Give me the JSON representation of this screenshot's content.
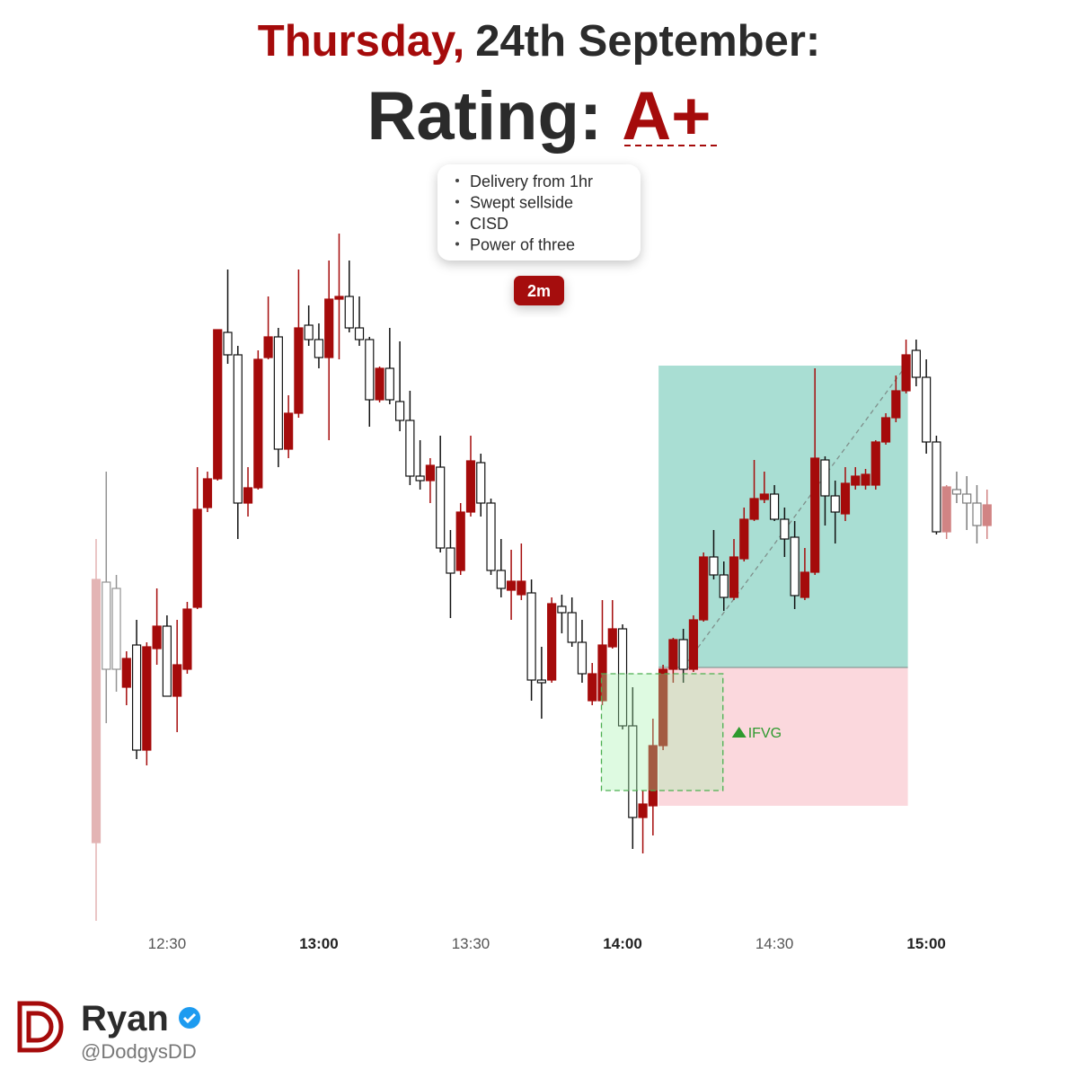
{
  "header": {
    "day": "Thursday,",
    "date": "24th September:",
    "rating_label": "Rating:",
    "rating": "A+"
  },
  "notes": {
    "bullets": [
      "Delivery from 1hr",
      "Swept sellside",
      "CISD",
      "Power of three"
    ],
    "timeframe": "2m"
  },
  "footer": {
    "name": "Ryan",
    "handle": "@DodgysDD"
  },
  "chart_data": {
    "type": "candlestick",
    "categories": [
      null,
      null,
      null,
      null,
      null,
      null,
      null,
      "12:30",
      null,
      null,
      null,
      null,
      null,
      null,
      null,
      null,
      null,
      null,
      null,
      null,
      null,
      null,
      "13:00",
      null,
      null,
      null,
      null,
      null,
      null,
      null,
      null,
      null,
      null,
      null,
      null,
      null,
      null,
      "13:30",
      null,
      null,
      null,
      null,
      null,
      null,
      null,
      null,
      null,
      null,
      null,
      null,
      null,
      null,
      "14:00",
      null,
      null,
      null,
      null,
      null,
      null,
      null,
      null,
      null,
      null,
      null,
      null,
      null,
      null,
      "14:30",
      null,
      null,
      null,
      null,
      null,
      null,
      null,
      null,
      null,
      null,
      null,
      null,
      null,
      null,
      "15:00",
      null,
      null,
      null,
      null,
      null,
      null
    ],
    "open": [
      162,
      452,
      445,
      335,
      382,
      265,
      378,
      403,
      325,
      355,
      424,
      535,
      567,
      730,
      705,
      540,
      557,
      702,
      725,
      600,
      640,
      738,
      722,
      702,
      767,
      770,
      735,
      722,
      655,
      690,
      653,
      632,
      570,
      565,
      580,
      490,
      465,
      530,
      585,
      540,
      465,
      443,
      438,
      440,
      343,
      343,
      425,
      418,
      385,
      320,
      320,
      380,
      400,
      292,
      190,
      203,
      270,
      355,
      388,
      355,
      410,
      480,
      460,
      435,
      478,
      522,
      544,
      550,
      522,
      502,
      435,
      463,
      588,
      548,
      528,
      560,
      560,
      560,
      608,
      635,
      665,
      710,
      680,
      608,
      508,
      555,
      550,
      540,
      515
    ],
    "high": [
      500,
      575,
      460,
      375,
      410,
      385,
      445,
      415,
      410,
      430,
      580,
      575,
      733,
      800,
      715,
      580,
      710,
      770,
      735,
      660,
      800,
      760,
      740,
      810,
      840,
      810,
      770,
      725,
      692,
      735,
      720,
      665,
      610,
      590,
      615,
      510,
      540,
      615,
      595,
      545,
      500,
      488,
      495,
      455,
      380,
      435,
      438,
      435,
      410,
      362,
      432,
      432,
      405,
      335,
      220,
      300,
      360,
      390,
      400,
      415,
      485,
      510,
      475,
      500,
      535,
      588,
      575,
      560,
      535,
      520,
      490,
      690,
      592,
      565,
      580,
      580,
      578,
      610,
      640,
      682,
      722,
      722,
      700,
      615,
      560,
      575,
      570,
      560,
      555
    ],
    "low": [
      75,
      295,
      330,
      315,
      255,
      248,
      360,
      325,
      285,
      350,
      422,
      530,
      565,
      695,
      500,
      525,
      555,
      700,
      580,
      590,
      635,
      715,
      690,
      610,
      700,
      730,
      715,
      625,
      652,
      650,
      620,
      560,
      555,
      540,
      485,
      412,
      460,
      525,
      525,
      460,
      435,
      410,
      432,
      320,
      300,
      340,
      395,
      380,
      340,
      315,
      315,
      378,
      288,
      155,
      150,
      170,
      265,
      340,
      340,
      352,
      408,
      455,
      420,
      432,
      475,
      520,
      540,
      520,
      480,
      422,
      432,
      460,
      515,
      495,
      520,
      555,
      555,
      555,
      605,
      630,
      662,
      670,
      595,
      505,
      500,
      540,
      510,
      495,
      500
    ],
    "close": [
      455,
      355,
      355,
      367,
      265,
      380,
      403,
      325,
      360,
      422,
      533,
      567,
      733,
      705,
      540,
      557,
      700,
      725,
      600,
      640,
      735,
      722,
      702,
      767,
      770,
      735,
      722,
      655,
      690,
      655,
      632,
      570,
      565,
      582,
      490,
      462,
      530,
      587,
      540,
      465,
      445,
      453,
      453,
      343,
      340,
      428,
      418,
      385,
      350,
      350,
      382,
      400,
      292,
      190,
      205,
      270,
      355,
      388,
      355,
      410,
      480,
      460,
      435,
      480,
      522,
      545,
      550,
      522,
      500,
      437,
      463,
      590,
      548,
      530,
      562,
      570,
      572,
      608,
      635,
      665,
      705,
      680,
      608,
      508,
      558,
      550,
      540,
      515,
      538
    ],
    "up_color": "#a50b0b",
    "down_color": "#ffffff",
    "ylim": [
      70,
      850
    ],
    "position": {
      "entry": 357,
      "target": 693,
      "stop": 203
    },
    "ifvg": {
      "label": "IFVG",
      "top": 350,
      "bottom": 220
    }
  }
}
